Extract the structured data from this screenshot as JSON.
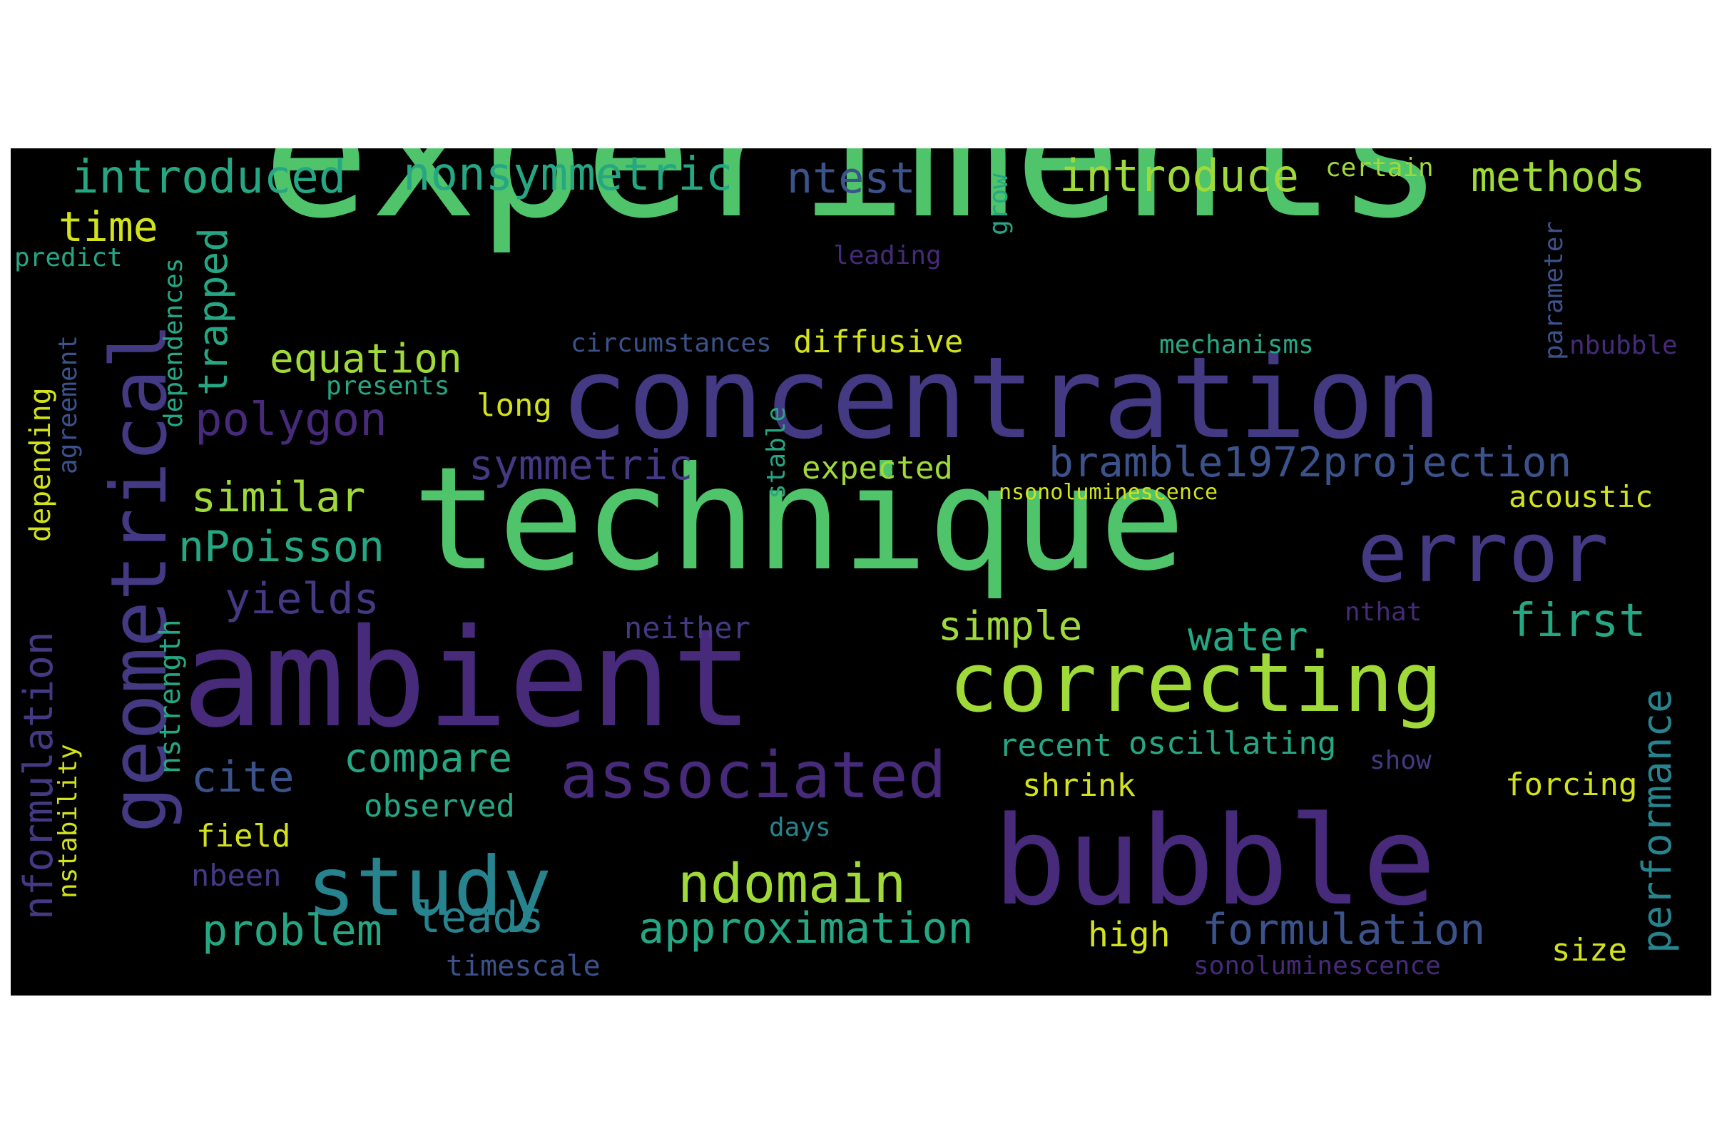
{
  "palette": {
    "frame_bg": "#000000",
    "page_bg": "#ffffff",
    "green": "#4fc46a",
    "lime": "#a0da39",
    "teal": "#26a784",
    "cyan": "#27848e",
    "blue": "#3b528b",
    "indigo": "#443983",
    "purple": "#472a7a",
    "yellow": "#d2e21b"
  },
  "words": [
    "experiments",
    "technique",
    "concentration",
    "ambient",
    "bubble",
    "geometrical",
    "correcting",
    "error",
    "study",
    "associated",
    "ndomain",
    "introduced",
    "nonsymmetric",
    "ntest",
    "introduce",
    "certain",
    "methods",
    "time",
    "trapped",
    "grow",
    "predict",
    "leading",
    "dependences",
    "equation",
    "diffusive",
    "circumstances",
    "mechanisms",
    "nbubble",
    "parameter",
    "agreement",
    "presents",
    "polygon",
    "depending",
    "long",
    "symmetric",
    "bramble1972projection",
    "similar",
    "stable",
    "expected",
    "nsonoluminescence",
    "acoustic",
    "nPoisson",
    "yields",
    "simple",
    "first",
    "water",
    "nthat",
    "neither",
    "nformulation",
    "nstrength",
    "cite",
    "compare",
    "approximation",
    "performance",
    "recent",
    "oscillating",
    "show",
    "forcing",
    "nstability",
    "observed",
    "shrink",
    "field",
    "days",
    "nbeen",
    "problem",
    "leads",
    "formulation",
    "high",
    "size",
    "timescale",
    "sonoluminescence"
  ]
}
